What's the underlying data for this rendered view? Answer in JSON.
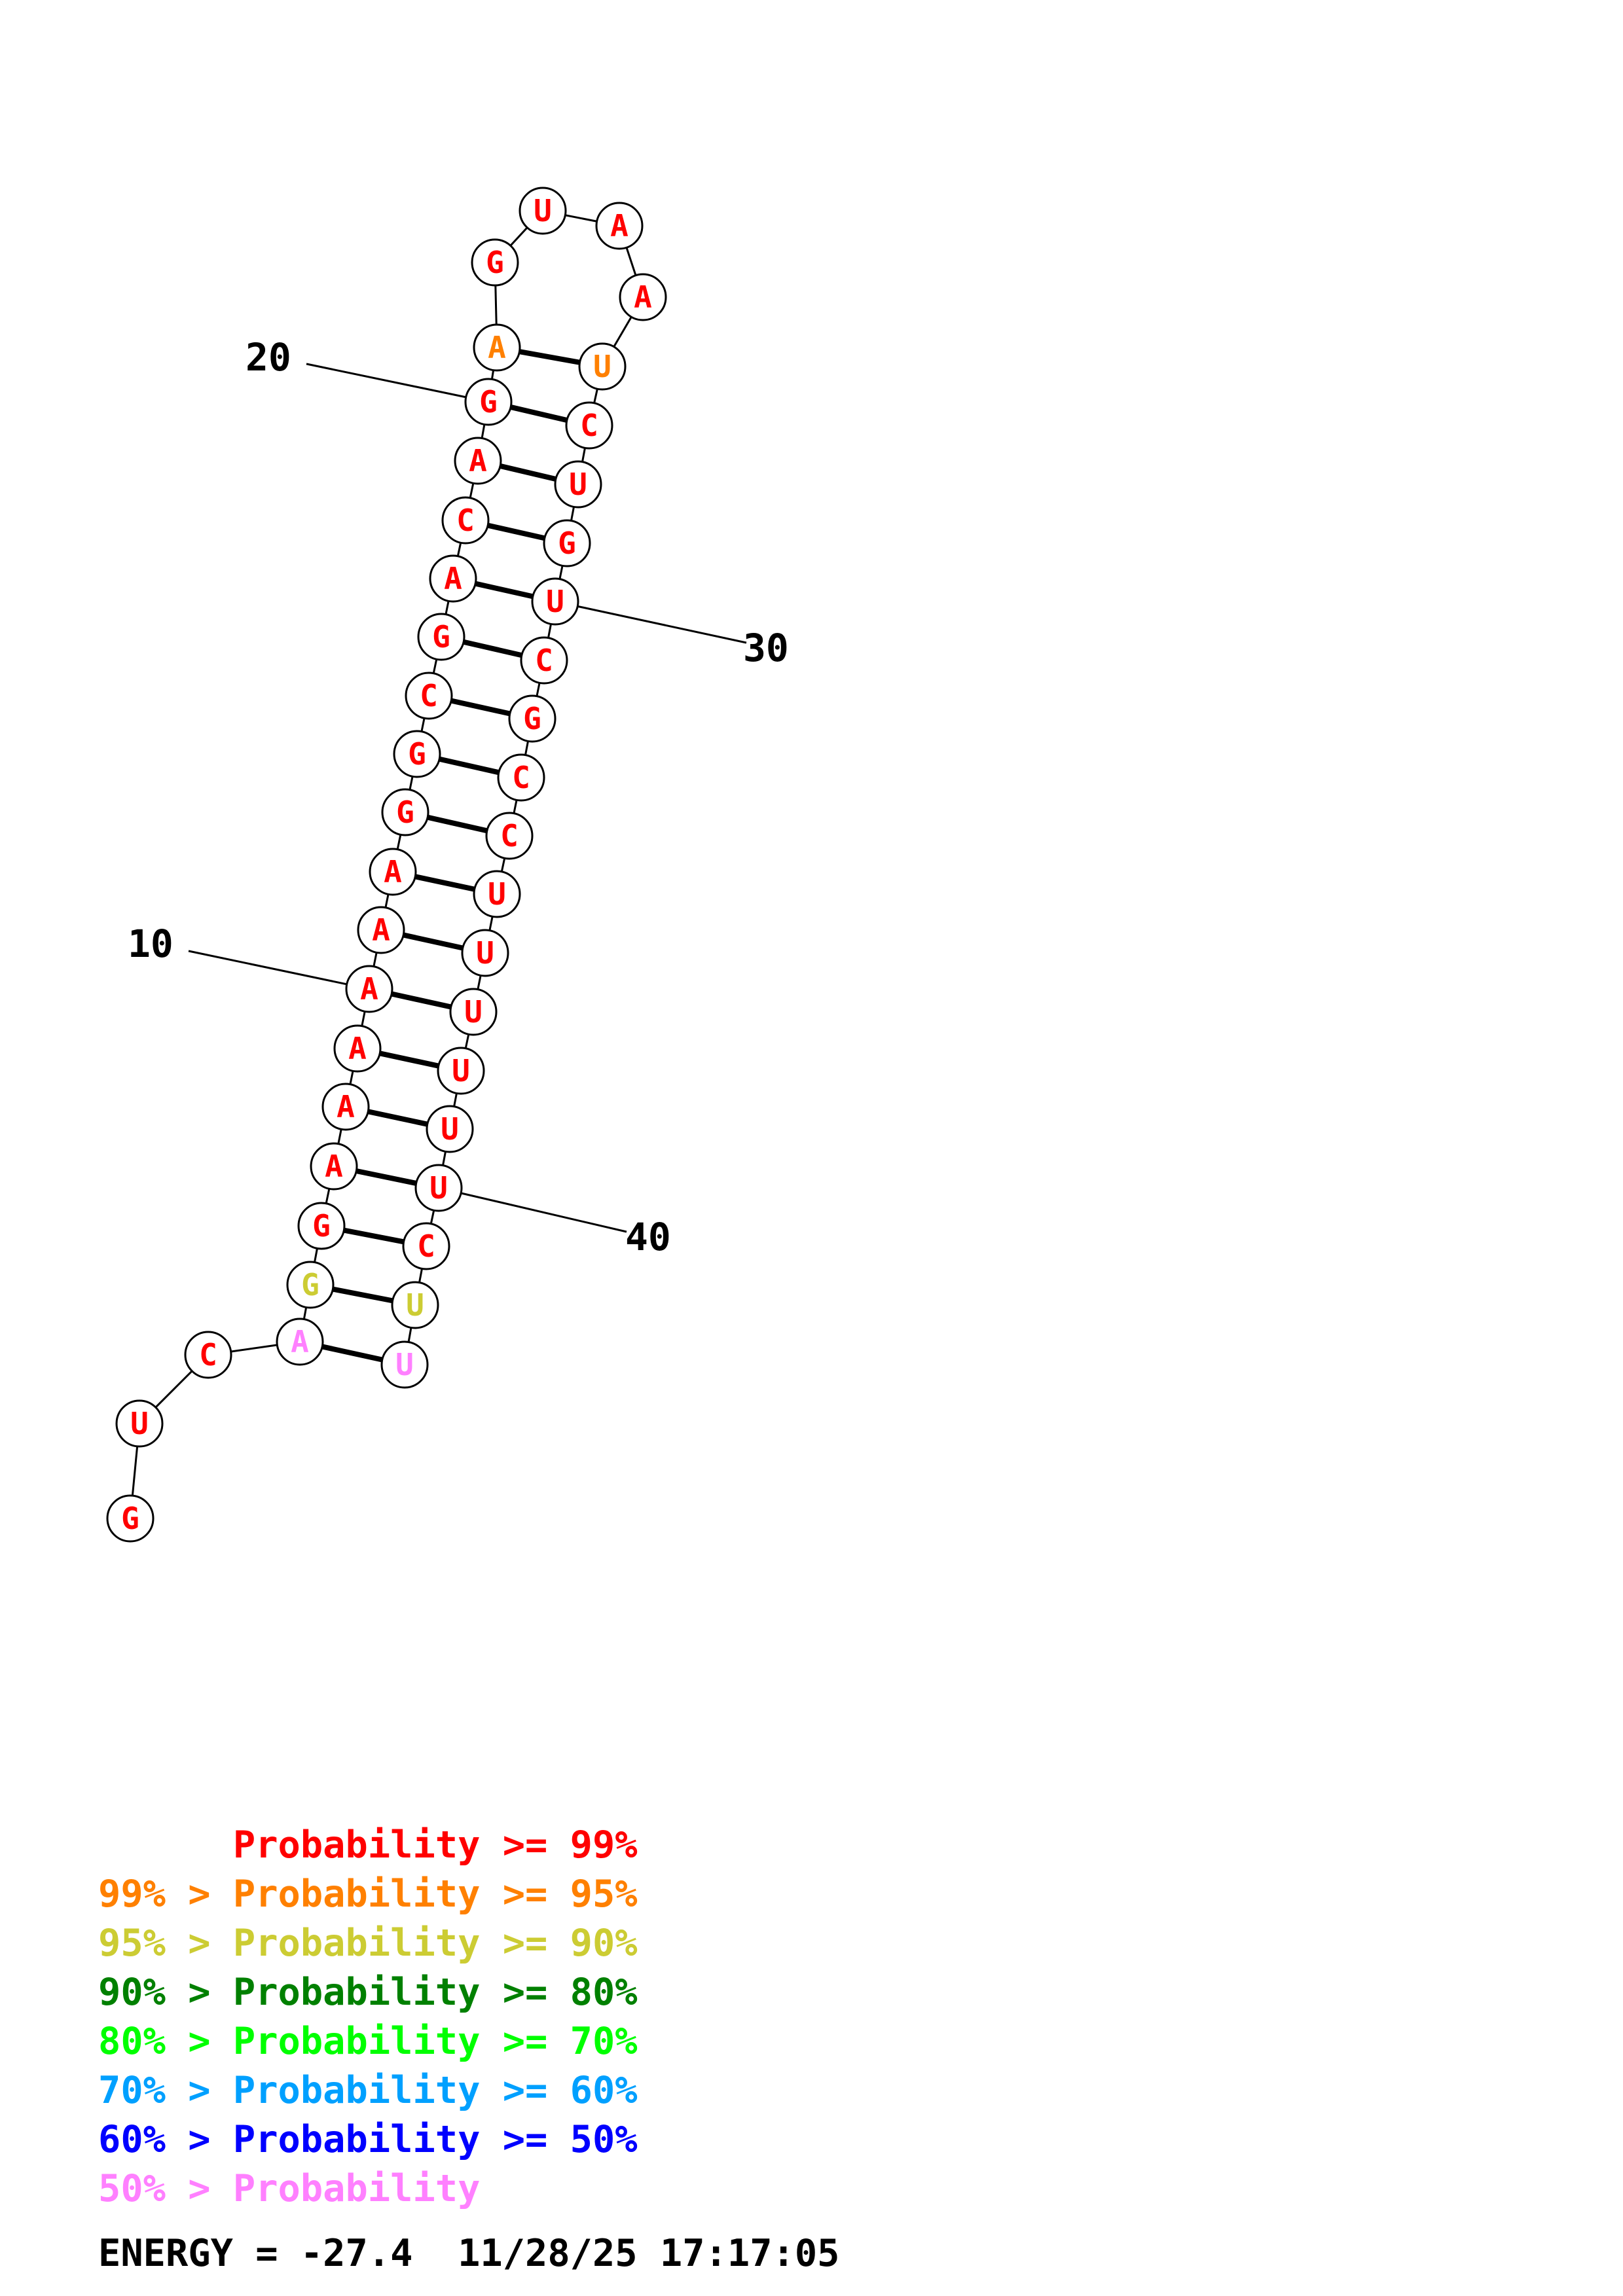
{
  "colors": {
    "p99": "#ff0000",
    "p95": "#ff8000",
    "p90": "#cccc33",
    "p80": "#008000",
    "p70": "#00ff00",
    "p60": "#00a0ff",
    "p50": "#0000ff",
    "plow": "#ff80ff"
  },
  "sequence": [
    {
      "n": 1,
      "base": "G",
      "prob": "p99"
    },
    {
      "n": 2,
      "base": "U",
      "prob": "p99"
    },
    {
      "n": 3,
      "base": "C",
      "prob": "p99"
    },
    {
      "n": 4,
      "base": "A",
      "prob": "plow"
    },
    {
      "n": 5,
      "base": "G",
      "prob": "p90"
    },
    {
      "n": 6,
      "base": "G",
      "prob": "p99"
    },
    {
      "n": 7,
      "base": "A",
      "prob": "p99"
    },
    {
      "n": 8,
      "base": "A",
      "prob": "p99"
    },
    {
      "n": 9,
      "base": "A",
      "prob": "p99"
    },
    {
      "n": 10,
      "base": "A",
      "prob": "p99"
    },
    {
      "n": 11,
      "base": "A",
      "prob": "p99"
    },
    {
      "n": 12,
      "base": "A",
      "prob": "p99"
    },
    {
      "n": 13,
      "base": "G",
      "prob": "p99"
    },
    {
      "n": 14,
      "base": "G",
      "prob": "p99"
    },
    {
      "n": 15,
      "base": "C",
      "prob": "p99"
    },
    {
      "n": 16,
      "base": "G",
      "prob": "p99"
    },
    {
      "n": 17,
      "base": "A",
      "prob": "p99"
    },
    {
      "n": 18,
      "base": "C",
      "prob": "p99"
    },
    {
      "n": 19,
      "base": "A",
      "prob": "p99"
    },
    {
      "n": 20,
      "base": "G",
      "prob": "p99"
    },
    {
      "n": 21,
      "base": "A",
      "prob": "p95"
    },
    {
      "n": 22,
      "base": "G",
      "prob": "p99"
    },
    {
      "n": 23,
      "base": "U",
      "prob": "p99"
    },
    {
      "n": 24,
      "base": "A",
      "prob": "p99"
    },
    {
      "n": 25,
      "base": "A",
      "prob": "p99"
    },
    {
      "n": 26,
      "base": "U",
      "prob": "p95"
    },
    {
      "n": 27,
      "base": "C",
      "prob": "p99"
    },
    {
      "n": 28,
      "base": "U",
      "prob": "p99"
    },
    {
      "n": 29,
      "base": "G",
      "prob": "p99"
    },
    {
      "n": 30,
      "base": "U",
      "prob": "p99"
    },
    {
      "n": 31,
      "base": "C",
      "prob": "p99"
    },
    {
      "n": 32,
      "base": "G",
      "prob": "p99"
    },
    {
      "n": 33,
      "base": "C",
      "prob": "p99"
    },
    {
      "n": 34,
      "base": "C",
      "prob": "p99"
    },
    {
      "n": 35,
      "base": "U",
      "prob": "p99"
    },
    {
      "n": 36,
      "base": "U",
      "prob": "p99"
    },
    {
      "n": 37,
      "base": "U",
      "prob": "p99"
    },
    {
      "n": 38,
      "base": "U",
      "prob": "p99"
    },
    {
      "n": 39,
      "base": "U",
      "prob": "p99"
    },
    {
      "n": 40,
      "base": "U",
      "prob": "p99"
    },
    {
      "n": 41,
      "base": "C",
      "prob": "p99"
    },
    {
      "n": 42,
      "base": "U",
      "prob": "p90"
    },
    {
      "n": 43,
      "base": "U",
      "prob": "plow"
    }
  ],
  "pairs": [
    [
      4,
      43
    ],
    [
      5,
      42
    ],
    [
      6,
      41
    ],
    [
      7,
      40
    ],
    [
      8,
      39
    ],
    [
      9,
      38
    ],
    [
      10,
      37
    ],
    [
      11,
      36
    ],
    [
      12,
      35
    ],
    [
      13,
      34
    ],
    [
      14,
      33
    ],
    [
      15,
      32
    ],
    [
      16,
      31
    ],
    [
      17,
      30
    ],
    [
      18,
      29
    ],
    [
      19,
      28
    ],
    [
      20,
      27
    ],
    [
      21,
      26
    ]
  ],
  "position_labels": [
    {
      "n": 10,
      "text": "10"
    },
    {
      "n": 20,
      "text": "20"
    },
    {
      "n": 30,
      "text": "30"
    },
    {
      "n": 40,
      "text": "40"
    }
  ],
  "legend": [
    {
      "prefix": "    ",
      "text": "Probability >= 99%",
      "color": "p99"
    },
    {
      "prefix": "99% > ",
      "text": "Probability >= 95%",
      "color": "p95"
    },
    {
      "prefix": "95% > ",
      "text": "Probability >= 90%",
      "color": "p90"
    },
    {
      "prefix": "90% > ",
      "text": "Probability >= 80%",
      "color": "p80"
    },
    {
      "prefix": "80% > ",
      "text": "Probability >= 70%",
      "color": "p70"
    },
    {
      "prefix": "70% > ",
      "text": "Probability >= 60%",
      "color": "p60"
    },
    {
      "prefix": "60% > ",
      "text": "Probability >= 50%",
      "color": "p50"
    },
    {
      "prefix": "50% > ",
      "text": "Probability",
      "color": "plow"
    }
  ],
  "energy": {
    "text": "ENERGY = -27.4  11/28/25 17:17:05"
  }
}
